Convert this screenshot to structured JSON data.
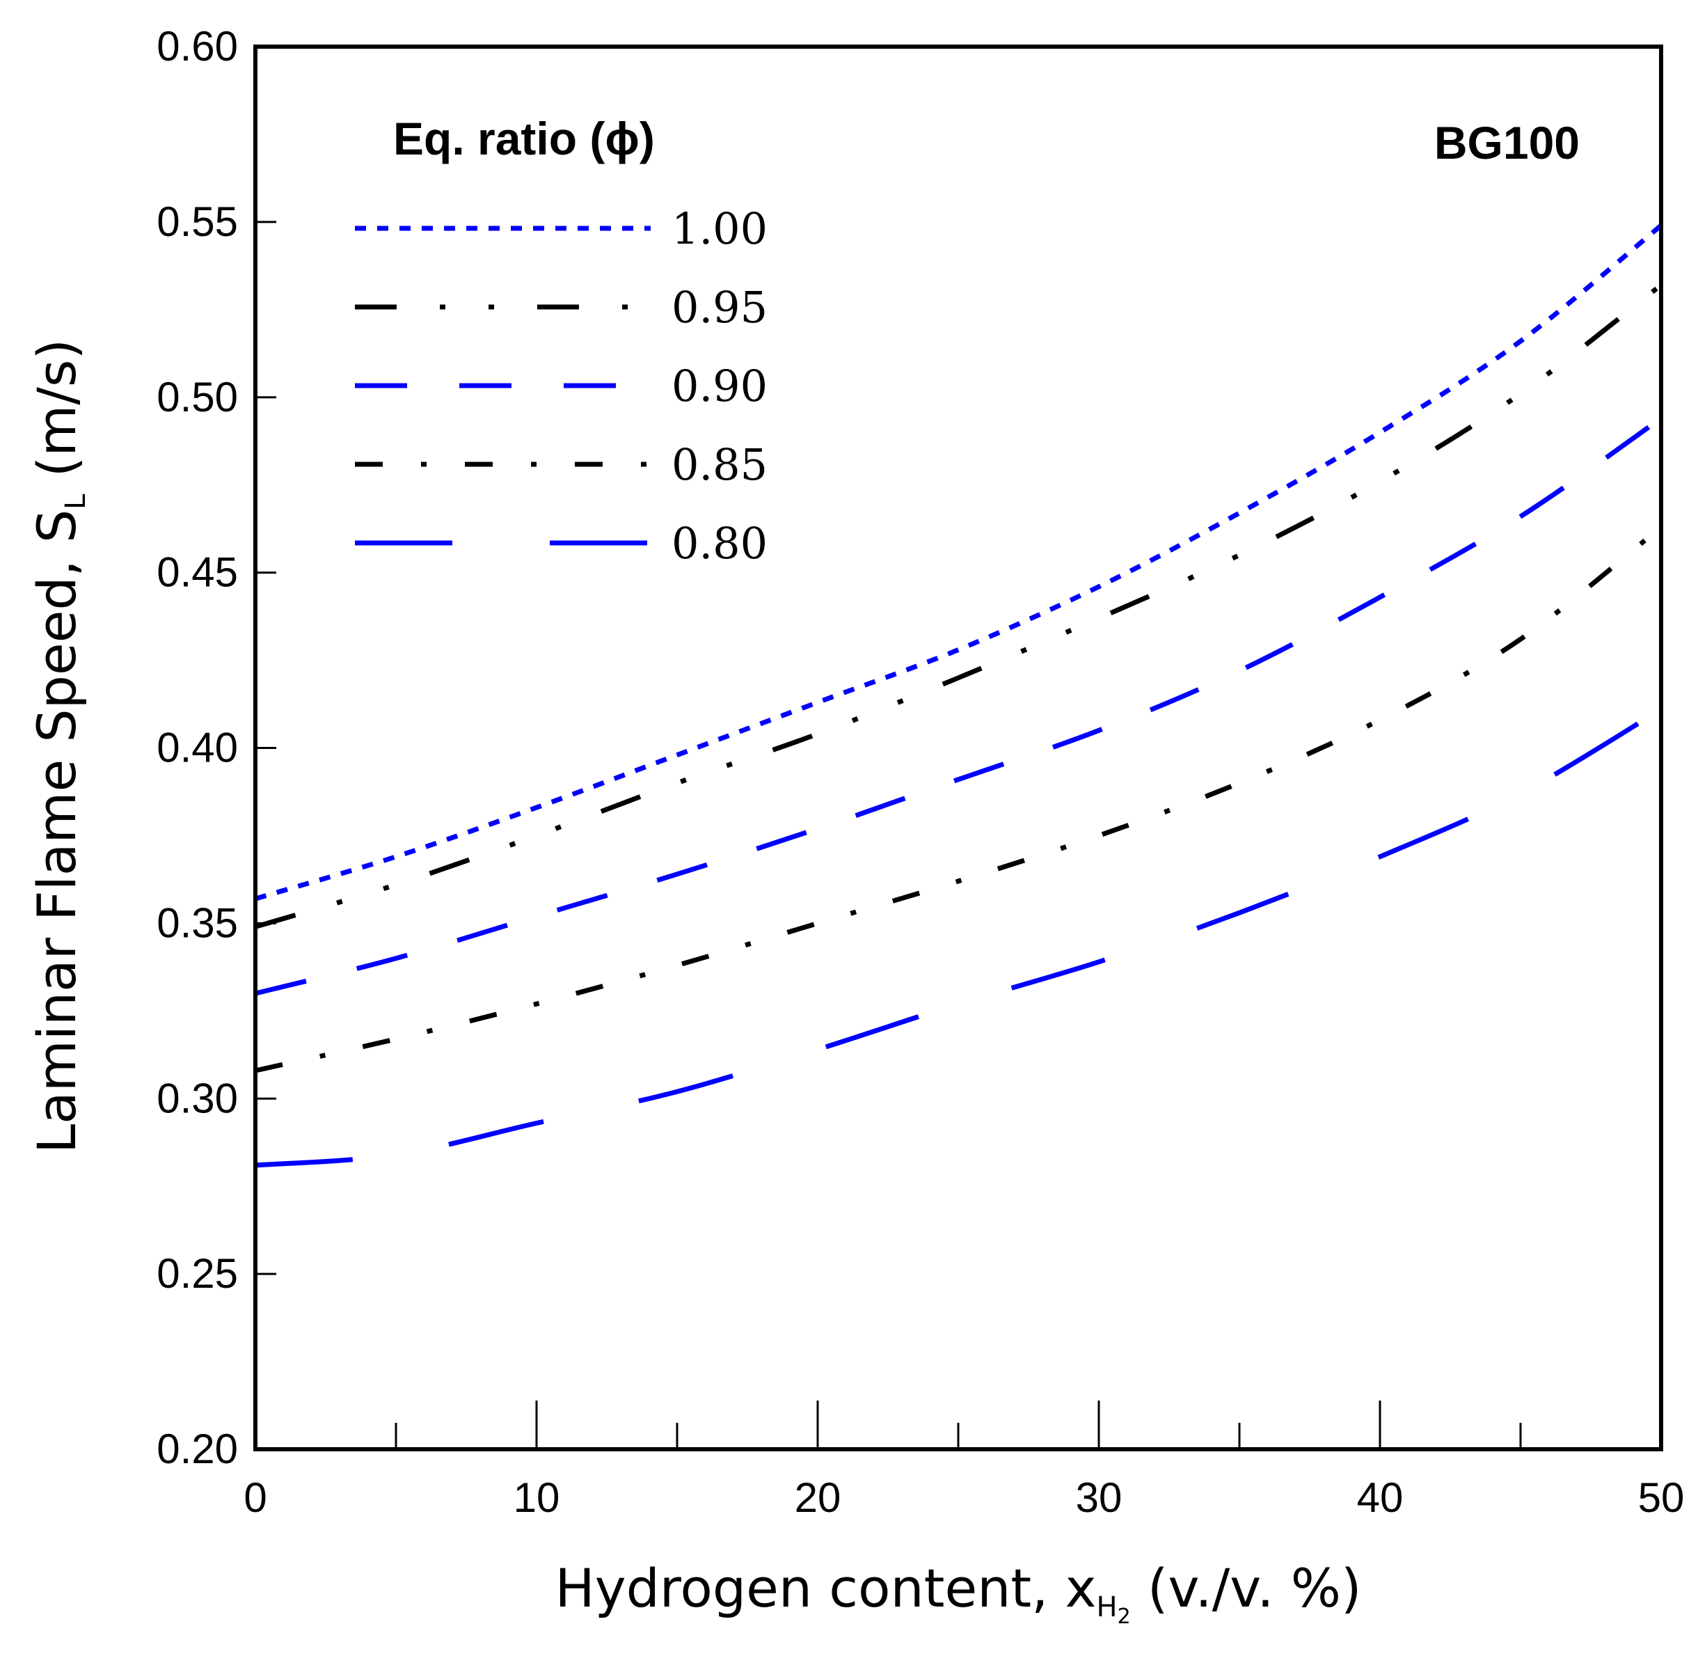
{
  "chart_data": {
    "type": "line",
    "title": "",
    "annotation": "BG100",
    "xlabel": {
      "prefix": "Hydrogen content, x",
      "sub": "H",
      "subsub": "2",
      "suffix": " (v./v. %)"
    },
    "ylabel": {
      "prefix": "Laminar Flame Speed, S",
      "sub": "L",
      "suffix": " (m/s)"
    },
    "xlim": [
      0,
      50
    ],
    "ylim": [
      0.2,
      0.6
    ],
    "x_major_ticks": [
      "0",
      "10",
      "20",
      "30",
      "40",
      "50"
    ],
    "x_minor_ticks": [
      5,
      15,
      25,
      35,
      45
    ],
    "y_ticks": [
      "0.20",
      "0.25",
      "0.30",
      "0.35",
      "0.40",
      "0.45",
      "0.50",
      "0.55",
      "0.60"
    ],
    "grid": false,
    "legend": {
      "title": "Eq. ratio (ϕ)",
      "position": "top-left",
      "entries": [
        "1.00",
        "0.95",
        "0.90",
        "0.85",
        "0.80"
      ]
    },
    "x": [
      0,
      5,
      10,
      15,
      20,
      25,
      30,
      35,
      40,
      45,
      50
    ],
    "series": [
      {
        "name": "1.00",
        "color": "#0000ff",
        "values": [
          0.357,
          0.369,
          0.383,
          0.398,
          0.413,
          0.428,
          0.446,
          0.467,
          0.49,
          0.516,
          0.549
        ]
      },
      {
        "name": "0.95",
        "color": "#000000",
        "values": [
          0.349,
          0.361,
          0.375,
          0.39,
          0.404,
          0.42,
          0.437,
          0.455,
          0.476,
          0.501,
          0.532
        ]
      },
      {
        "name": "0.90",
        "color": "#0000ff",
        "values": [
          0.33,
          0.34,
          0.352,
          0.364,
          0.377,
          0.391,
          0.405,
          0.422,
          0.443,
          0.466,
          0.494
        ]
      },
      {
        "name": "0.85",
        "color": "#000000",
        "values": [
          0.308,
          0.317,
          0.327,
          0.338,
          0.35,
          0.362,
          0.375,
          0.39,
          0.408,
          0.431,
          0.463
        ]
      },
      {
        "name": "0.80",
        "color": "#0000ff",
        "values": [
          0.281,
          0.284,
          0.293,
          0.302,
          0.314,
          0.327,
          0.339,
          0.353,
          0.369,
          0.387,
          0.411
        ]
      }
    ]
  }
}
